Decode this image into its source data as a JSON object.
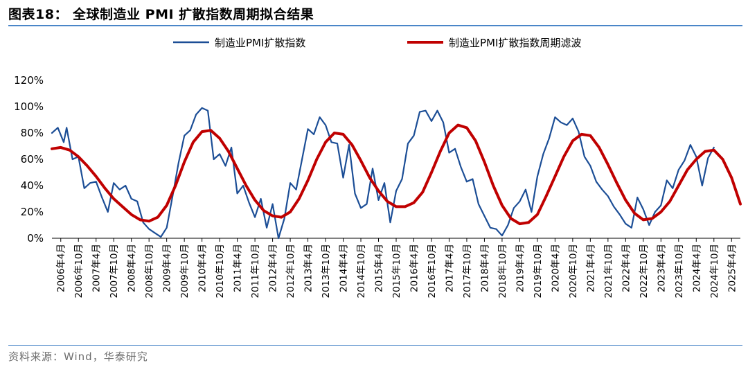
{
  "header": {
    "title": "图表18：  全球制造业 PMI 扩散指数周期拟合结果"
  },
  "footer": {
    "source": "资料来源：Wind，华泰研究"
  },
  "colors": {
    "actual": "#1c4e96",
    "filter": "#c00000",
    "rule": "#4a86c8"
  },
  "chart_data": {
    "type": "line",
    "title": "全球制造业 PMI 扩散指数周期拟合结果",
    "ylim": [
      0,
      120
    ],
    "y_ticks": [
      "0%",
      "20%",
      "40%",
      "60%",
      "80%",
      "100%",
      "120%"
    ],
    "y_unit": "%",
    "x_ticks": [
      "2006年4月",
      "2006年10月",
      "2007年4月",
      "2007年10月",
      "2008年4月",
      "2008年10月",
      "2009年4月",
      "2009年10月",
      "2010年4月",
      "2010年10月",
      "2011年4月",
      "2011年10月",
      "2012年4月",
      "2012年10月",
      "2013年4月",
      "2013年10月",
      "2014年4月",
      "2014年10月",
      "2015年4月",
      "2015年10月",
      "2016年4月",
      "2016年10月",
      "2017年4月",
      "2017年10月",
      "2018年4月",
      "2018年10月",
      "2019年4月",
      "2019年10月",
      "2020年4月",
      "2020年10月",
      "2021年4月",
      "2021年10月",
      "2022年4月",
      "2022年10月",
      "2023年4月",
      "2023年10月",
      "2024年4月",
      "2024年10月",
      "2025年4月"
    ],
    "legend_position": "top",
    "grid": false,
    "series": [
      {
        "name": "制造业PMI扩散指数",
        "color": "#1c4e96",
        "x": [
          "2006-01",
          "2006-03",
          "2006-05",
          "2006-06",
          "2006-08",
          "2006-10",
          "2006-12",
          "2007-02",
          "2007-04",
          "2007-06",
          "2007-08",
          "2007-10",
          "2007-12",
          "2008-02",
          "2008-04",
          "2008-06",
          "2008-08",
          "2008-10",
          "2008-12",
          "2009-02",
          "2009-04",
          "2009-06",
          "2009-08",
          "2009-10",
          "2009-12",
          "2010-02",
          "2010-04",
          "2010-06",
          "2010-08",
          "2010-10",
          "2010-12",
          "2011-02",
          "2011-04",
          "2011-06",
          "2011-08",
          "2011-10",
          "2011-12",
          "2012-02",
          "2012-04",
          "2012-06",
          "2012-08",
          "2012-10",
          "2012-12",
          "2013-02",
          "2013-04",
          "2013-06",
          "2013-08",
          "2013-10",
          "2013-12",
          "2014-02",
          "2014-04",
          "2014-06",
          "2014-08",
          "2014-10",
          "2014-12",
          "2015-02",
          "2015-04",
          "2015-06",
          "2015-08",
          "2015-10",
          "2015-12",
          "2016-02",
          "2016-04",
          "2016-06",
          "2016-08",
          "2016-10",
          "2016-12",
          "2017-02",
          "2017-04",
          "2017-06",
          "2017-08",
          "2017-10",
          "2017-12",
          "2018-02",
          "2018-04",
          "2018-06",
          "2018-08",
          "2018-10",
          "2018-12",
          "2019-02",
          "2019-04",
          "2019-06",
          "2019-08",
          "2019-10",
          "2019-12",
          "2020-02",
          "2020-04",
          "2020-06",
          "2020-08",
          "2020-10",
          "2020-12",
          "2021-02",
          "2021-04",
          "2021-06",
          "2021-08",
          "2021-10",
          "2021-12",
          "2022-02",
          "2022-04",
          "2022-06",
          "2022-08",
          "2022-10",
          "2022-12",
          "2023-02",
          "2023-04",
          "2023-06",
          "2023-08",
          "2023-10",
          "2023-12",
          "2024-02",
          "2024-04",
          "2024-06",
          "2024-08",
          "2024-10"
        ],
        "y": [
          80,
          84,
          73,
          84,
          60,
          62,
          38,
          42,
          43,
          31,
          20,
          42,
          37,
          40,
          30,
          28,
          12,
          7,
          4,
          1,
          8,
          32,
          57,
          78,
          82,
          94,
          99,
          97,
          60,
          64,
          55,
          69,
          34,
          40,
          27,
          16,
          30,
          8,
          26,
          0,
          15,
          42,
          37,
          60,
          83,
          79,
          92,
          86,
          73,
          72,
          46,
          71,
          34,
          23,
          26,
          53,
          29,
          42,
          12,
          36,
          45,
          72,
          78,
          96,
          97,
          89,
          97,
          88,
          65,
          68,
          54,
          43,
          45,
          26,
          17,
          8,
          7,
          2,
          10,
          23,
          28,
          37,
          20,
          47,
          64,
          76,
          92,
          88,
          86,
          91,
          81,
          62,
          55,
          43,
          37,
          32,
          24,
          18,
          11,
          8,
          31,
          22,
          10,
          20,
          25,
          44,
          38,
          52,
          59,
          71,
          62,
          40,
          61,
          69
        ]
      },
      {
        "name": "制造业PMI扩散指数周期滤波",
        "color": "#c00000",
        "x": [
          "2006-01",
          "2006-04",
          "2006-07",
          "2006-10",
          "2007-01",
          "2007-04",
          "2007-07",
          "2007-10",
          "2008-01",
          "2008-04",
          "2008-07",
          "2008-10",
          "2009-01",
          "2009-04",
          "2009-07",
          "2009-10",
          "2010-01",
          "2010-04",
          "2010-07",
          "2010-10",
          "2011-01",
          "2011-04",
          "2011-07",
          "2011-10",
          "2012-01",
          "2012-04",
          "2012-07",
          "2012-10",
          "2013-01",
          "2013-04",
          "2013-07",
          "2013-10",
          "2014-01",
          "2014-04",
          "2014-07",
          "2014-10",
          "2015-01",
          "2015-04",
          "2015-07",
          "2015-10",
          "2016-01",
          "2016-04",
          "2016-07",
          "2016-10",
          "2017-01",
          "2017-04",
          "2017-07",
          "2017-10",
          "2018-01",
          "2018-04",
          "2018-07",
          "2018-10",
          "2019-01",
          "2019-04",
          "2019-07",
          "2019-10",
          "2020-01",
          "2020-04",
          "2020-07",
          "2020-10",
          "2021-01",
          "2021-04",
          "2021-07",
          "2021-10",
          "2022-01",
          "2022-04",
          "2022-07",
          "2022-10",
          "2023-01",
          "2023-04",
          "2023-07",
          "2023-10",
          "2024-01",
          "2024-04",
          "2024-07",
          "2024-10",
          "2025-01",
          "2025-04",
          "2025-07"
        ],
        "y": [
          68,
          69,
          67,
          62,
          55,
          47,
          38,
          30,
          24,
          18,
          14,
          13,
          16,
          25,
          40,
          58,
          73,
          81,
          82,
          76,
          66,
          53,
          40,
          29,
          21,
          17,
          16,
          20,
          30,
          44,
          60,
          73,
          80,
          79,
          71,
          59,
          46,
          36,
          28,
          24,
          24,
          27,
          35,
          50,
          66,
          80,
          86,
          84,
          74,
          58,
          40,
          25,
          15,
          11,
          12,
          18,
          32,
          47,
          62,
          74,
          79,
          78,
          69,
          56,
          42,
          29,
          19,
          14,
          15,
          20,
          28,
          40,
          52,
          60,
          66,
          67,
          60,
          46,
          26
        ]
      }
    ]
  }
}
